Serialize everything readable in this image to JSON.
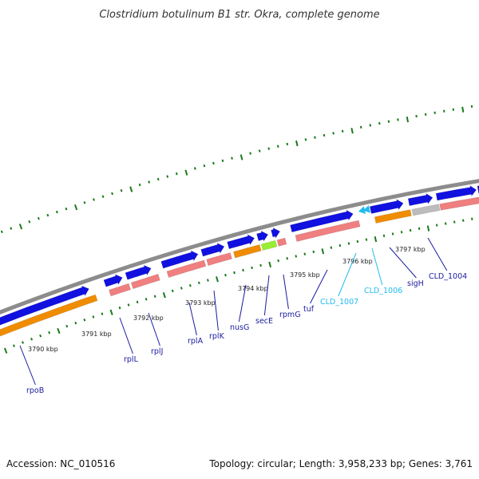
{
  "title": "Clostridium botulinum B1 str. Okra, complete genome",
  "footer": {
    "accession": "Accession: NC_010516",
    "stats": "Topology: circular; Length: 3,958,233 bp; Genes: 3,761"
  },
  "colors": {
    "backbone": "#8c8c8c",
    "cds": "#1010e0",
    "rna": "#f07f7f",
    "orange": "#f08c00",
    "green_feature": "#99ee33",
    "gray_feature": "#bcbcbc",
    "tick": "#1a7a1a",
    "label_dark": "#1a1aa0",
    "label_light": "#22bbee"
  },
  "kbp_labels": [
    "3790 kbp",
    "3791 kbp",
    "3792 kbp",
    "3793 kbp",
    "3794 kbp",
    "3795 kbp",
    "3796 kbp",
    "3797 kbp"
  ],
  "gene_labels": [
    {
      "name": "rpoB",
      "color": "dark"
    },
    {
      "name": "rplL",
      "color": "dark"
    },
    {
      "name": "rplJ",
      "color": "dark"
    },
    {
      "name": "rplA",
      "color": "dark"
    },
    {
      "name": "rplK",
      "color": "dark"
    },
    {
      "name": "nusG",
      "color": "dark"
    },
    {
      "name": "secE",
      "color": "dark"
    },
    {
      "name": "rpmG",
      "color": "dark"
    },
    {
      "name": "tuf",
      "color": "dark"
    },
    {
      "name": "CLD_1007",
      "color": "light"
    },
    {
      "name": "CLD_1006",
      "color": "light"
    },
    {
      "name": "sigH",
      "color": "dark"
    },
    {
      "name": "CLD_1004",
      "color": "dark"
    }
  ]
}
